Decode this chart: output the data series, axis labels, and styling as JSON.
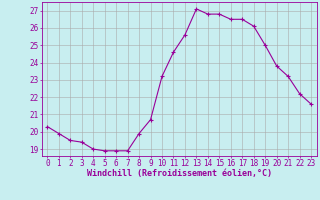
{
  "x": [
    0,
    1,
    2,
    3,
    4,
    5,
    6,
    7,
    8,
    9,
    10,
    11,
    12,
    13,
    14,
    15,
    16,
    17,
    18,
    19,
    20,
    21,
    22,
    23
  ],
  "y": [
    20.3,
    19.9,
    19.5,
    19.4,
    19.0,
    18.9,
    18.9,
    18.9,
    19.9,
    20.7,
    23.2,
    24.6,
    25.6,
    27.1,
    26.8,
    26.8,
    26.5,
    26.5,
    26.1,
    25.0,
    23.8,
    23.2,
    22.2,
    21.6
  ],
  "line_color": "#990099",
  "marker": "+",
  "marker_size": 3,
  "marker_linewidth": 0.8,
  "line_width": 0.8,
  "bg_color": "#c8eef0",
  "grid_color": "#aaaaaa",
  "xlabel": "Windchill (Refroidissement éolien,°C)",
  "xlabel_color": "#990099",
  "ylabel_ticks": [
    19,
    20,
    21,
    22,
    23,
    24,
    25,
    26,
    27
  ],
  "xtick_labels": [
    "0",
    "1",
    "2",
    "3",
    "4",
    "5",
    "6",
    "7",
    "8",
    "9",
    "10",
    "11",
    "12",
    "13",
    "14",
    "15",
    "16",
    "17",
    "18",
    "19",
    "20",
    "21",
    "22",
    "23"
  ],
  "ylim": [
    18.6,
    27.5
  ],
  "xlim": [
    -0.5,
    23.5
  ],
  "tick_color": "#990099",
  "tick_fontsize": 5.5,
  "xlabel_fontsize": 6.0,
  "grid_linewidth": 0.4
}
